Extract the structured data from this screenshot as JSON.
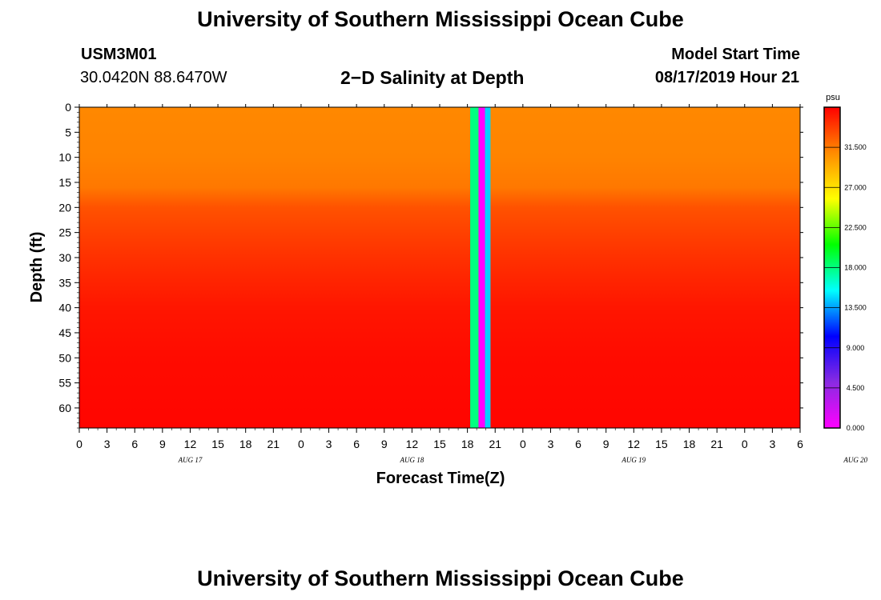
{
  "header": {
    "title_top": "University of Southern Mississippi Ocean Cube",
    "title_bottom": "University of Southern Mississippi Ocean Cube",
    "station_id": "USM3M01",
    "station_coords": "30.0420N 88.6470W",
    "model_start_label": "Model Start Time",
    "model_start_value": "08/17/2019 Hour 21"
  },
  "chart_data": {
    "type": "heatmap",
    "title": "2−D Salinity at Depth",
    "xlabel": "Forecast Time(Z)",
    "ylabel": "Depth (ft)",
    "x_unit": "hours",
    "x_ticks": [
      "0",
      "3",
      "6",
      "9",
      "12",
      "15",
      "18",
      "21",
      "0",
      "3",
      "6",
      "9",
      "12",
      "15",
      "18",
      "21",
      "0",
      "3",
      "6",
      "9",
      "12",
      "15",
      "18",
      "21",
      "0",
      "3",
      "6"
    ],
    "date_labels": [
      {
        "label": "AUG 17",
        "hour_index": 12
      },
      {
        "label": "AUG 18",
        "hour_index": 36
      },
      {
        "label": "AUG 19",
        "hour_index": 60
      },
      {
        "label": "AUG 20",
        "hour_index": 84
      }
    ],
    "xlim": [
      0,
      78
    ],
    "ylim": [
      0,
      64
    ],
    "y_inverted": true,
    "y_ticks": [
      0,
      5,
      10,
      15,
      20,
      25,
      30,
      35,
      40,
      45,
      50,
      55,
      60
    ],
    "colorbar": {
      "unit": "psu",
      "min": 0,
      "max": 36,
      "ticks": [
        "0.000",
        "4.500",
        "9.000",
        "13.500",
        "18.000",
        "22.500",
        "27.000",
        "31.500"
      ],
      "tick_values": [
        0,
        4.5,
        9,
        13.5,
        18,
        22.5,
        27,
        31.5
      ],
      "colors": [
        "#ff00ff",
        "#8a2be2",
        "#0000ff",
        "#00ffff",
        "#00ff00",
        "#ffff00",
        "#ff8c00",
        "#ff0000"
      ]
    },
    "salinity_profile": {
      "depths": [
        0,
        10,
        16,
        20,
        25,
        30,
        35,
        40,
        50,
        64
      ],
      "values": [
        31.0,
        31.2,
        31.6,
        33.0,
        33.6,
        34.2,
        34.7,
        35.2,
        35.6,
        35.8
      ]
    },
    "anomaly_bands": [
      {
        "x_start": 42.3,
        "x_end": 43.2,
        "value": 18.0
      },
      {
        "x_start": 43.2,
        "x_end": 43.9,
        "value": 0.0
      },
      {
        "x_start": 43.9,
        "x_end": 44.5,
        "value": 14.5
      }
    ],
    "legend": "right"
  }
}
